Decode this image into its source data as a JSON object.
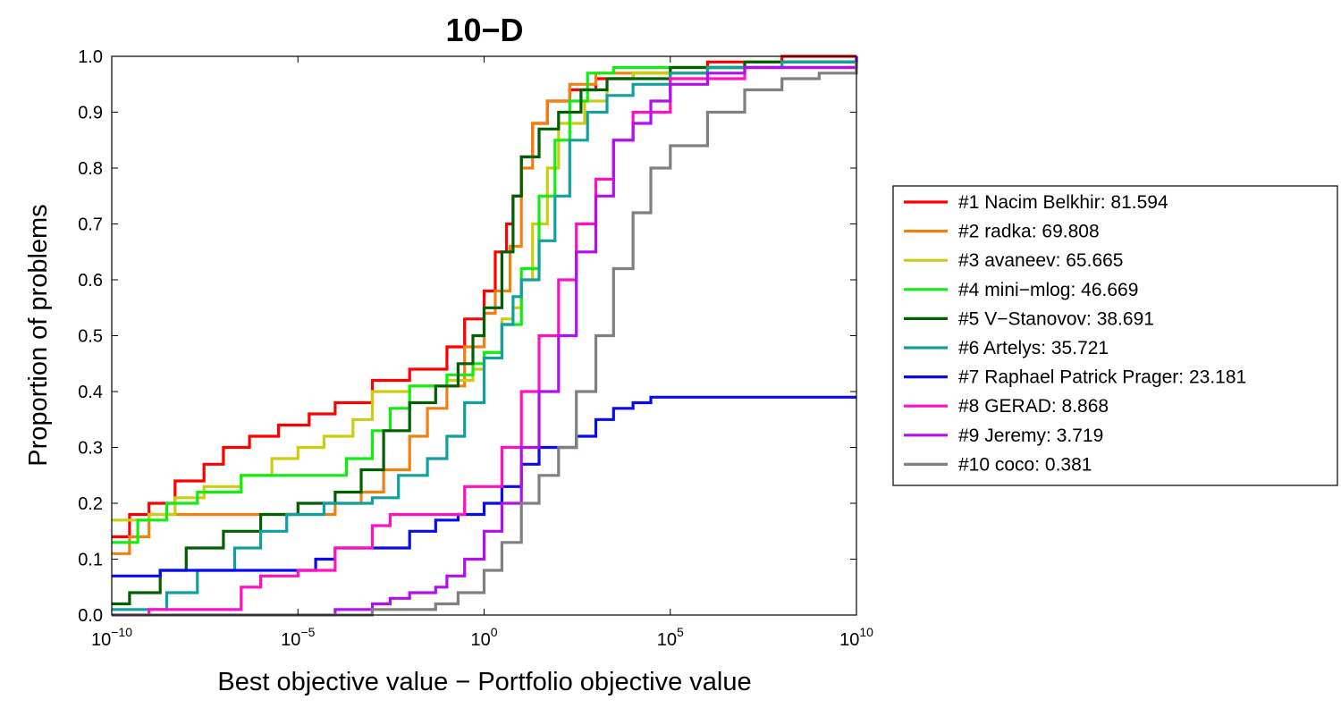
{
  "chart_data": {
    "type": "line",
    "title": "10−D",
    "xlabel": "Best objective value − Portfolio objective value",
    "ylabel": "Proportion of problems",
    "x_scale": "log",
    "xlim": [
      1e-10,
      10000000000.0
    ],
    "ylim": [
      0,
      1
    ],
    "x_ticks": [
      {
        "value": 1e-10,
        "base": "10",
        "exp": "−10"
      },
      {
        "value": 1e-05,
        "base": "10",
        "exp": "−5"
      },
      {
        "value": 1,
        "base": "10",
        "exp": "0"
      },
      {
        "value": 100000.0,
        "base": "10",
        "exp": "5"
      },
      {
        "value": 10000000000.0,
        "base": "10",
        "exp": "10"
      }
    ],
    "y_ticks": [
      "0.0",
      "0.1",
      "0.2",
      "0.3",
      "0.4",
      "0.5",
      "0.6",
      "0.7",
      "0.8",
      "0.9",
      "1.0"
    ],
    "grid": false,
    "legend_position": "right",
    "series": [
      {
        "name": "#1 Nacim Belkhir: 81.594",
        "color": "#ff0000",
        "points": [
          [
            1e-10,
            0.14
          ],
          [
            3e-10,
            0.18
          ],
          [
            1e-09,
            0.2
          ],
          [
            5e-09,
            0.24
          ],
          [
            3e-08,
            0.27
          ],
          [
            1e-07,
            0.3
          ],
          [
            5e-07,
            0.32
          ],
          [
            3e-06,
            0.34
          ],
          [
            2e-05,
            0.36
          ],
          [
            0.0001,
            0.38
          ],
          [
            0.001,
            0.42
          ],
          [
            0.01,
            0.44
          ],
          [
            0.1,
            0.48
          ],
          [
            0.3,
            0.53
          ],
          [
            1,
            0.58
          ],
          [
            2,
            0.65
          ],
          [
            4,
            0.7
          ],
          [
            6,
            0.75
          ],
          [
            10,
            0.82
          ],
          [
            20,
            0.88
          ],
          [
            50,
            0.92
          ],
          [
            200,
            0.94
          ],
          [
            1000,
            0.96
          ],
          [
            10000.0,
            0.97
          ],
          [
            1000000.0,
            0.99
          ],
          [
            100000000.0,
            1.0
          ],
          [
            10000000000.0,
            1.0
          ]
        ]
      },
      {
        "name": "#2 radka: 69.808",
        "color": "#f08010",
        "points": [
          [
            1e-10,
            0.11
          ],
          [
            3e-10,
            0.14
          ],
          [
            1e-09,
            0.18
          ],
          [
            1e-07,
            0.18
          ],
          [
            1e-05,
            0.18
          ],
          [
            0.0001,
            0.2
          ],
          [
            0.0005,
            0.22
          ],
          [
            0.002,
            0.26
          ],
          [
            0.01,
            0.32
          ],
          [
            0.03,
            0.37
          ],
          [
            0.1,
            0.41
          ],
          [
            0.3,
            0.48
          ],
          [
            1,
            0.54
          ],
          [
            2,
            0.58
          ],
          [
            5,
            0.66
          ],
          [
            10,
            0.8
          ],
          [
            20,
            0.88
          ],
          [
            50,
            0.92
          ],
          [
            200,
            0.95
          ],
          [
            1000,
            0.97
          ],
          [
            100000.0,
            0.98
          ],
          [
            10000000.0,
            0.99
          ],
          [
            10000000000.0,
            1.0
          ]
        ]
      },
      {
        "name": "#3 avaneev: 65.665",
        "color": "#cccc10",
        "points": [
          [
            1e-10,
            0.17
          ],
          [
            1e-09,
            0.18
          ],
          [
            5e-09,
            0.21
          ],
          [
            3e-08,
            0.23
          ],
          [
            3e-07,
            0.25
          ],
          [
            2e-06,
            0.28
          ],
          [
            1e-05,
            0.3
          ],
          [
            5e-05,
            0.32
          ],
          [
            0.0003,
            0.35
          ],
          [
            0.001,
            0.4
          ],
          [
            0.01,
            0.41
          ],
          [
            0.1,
            0.42
          ],
          [
            0.5,
            0.44
          ],
          [
            1,
            0.47
          ],
          [
            3,
            0.53
          ],
          [
            6,
            0.55
          ],
          [
            10,
            0.6
          ],
          [
            20,
            0.7
          ],
          [
            50,
            0.8
          ],
          [
            100,
            0.88
          ],
          [
            500,
            0.92
          ],
          [
            2000,
            0.96
          ],
          [
            10000.0,
            0.97
          ],
          [
            1000000.0,
            0.98
          ],
          [
            100000000.0,
            0.99
          ],
          [
            10000000000.0,
            1.0
          ]
        ]
      },
      {
        "name": "#4 mini−mlog: 46.669",
        "color": "#10ee10",
        "points": [
          [
            1e-10,
            0.13
          ],
          [
            5e-10,
            0.17
          ],
          [
            3e-09,
            0.2
          ],
          [
            2e-08,
            0.22
          ],
          [
            3e-07,
            0.25
          ],
          [
            5e-05,
            0.25
          ],
          [
            0.0002,
            0.28
          ],
          [
            0.001,
            0.33
          ],
          [
            0.003,
            0.37
          ],
          [
            0.01,
            0.41
          ],
          [
            0.1,
            0.43
          ],
          [
            0.5,
            0.45
          ],
          [
            1,
            0.47
          ],
          [
            3,
            0.52
          ],
          [
            10,
            0.62
          ],
          [
            30,
            0.75
          ],
          [
            80,
            0.85
          ],
          [
            200,
            0.92
          ],
          [
            600,
            0.97
          ],
          [
            3000,
            0.98
          ],
          [
            100000.0,
            0.98
          ],
          [
            10000000.0,
            0.99
          ],
          [
            10000000000.0,
            1.0
          ]
        ]
      },
      {
        "name": "#5 V−Stanovov: 38.691",
        "color": "#005f00",
        "points": [
          [
            1e-10,
            0.02
          ],
          [
            3e-10,
            0.04
          ],
          [
            2e-09,
            0.08
          ],
          [
            1e-08,
            0.12
          ],
          [
            1e-07,
            0.15
          ],
          [
            1e-06,
            0.18
          ],
          [
            1e-05,
            0.2
          ],
          [
            0.0001,
            0.22
          ],
          [
            0.0005,
            0.26
          ],
          [
            0.002,
            0.33
          ],
          [
            0.01,
            0.38
          ],
          [
            0.05,
            0.41
          ],
          [
            0.2,
            0.45
          ],
          [
            0.5,
            0.5
          ],
          [
            1,
            0.55
          ],
          [
            3,
            0.65
          ],
          [
            6,
            0.75
          ],
          [
            10,
            0.82
          ],
          [
            30,
            0.87
          ],
          [
            100,
            0.9
          ],
          [
            400,
            0.94
          ],
          [
            2000,
            0.96
          ],
          [
            100000.0,
            0.98
          ],
          [
            10000000.0,
            0.99
          ],
          [
            10000000000.0,
            1.0
          ]
        ]
      },
      {
        "name": "#6 Artelys: 35.721",
        "color": "#10a0a0",
        "points": [
          [
            1e-10,
            0.01
          ],
          [
            3e-09,
            0.04
          ],
          [
            2e-08,
            0.08
          ],
          [
            2e-07,
            0.12
          ],
          [
            1e-06,
            0.15
          ],
          [
            5e-06,
            0.18
          ],
          [
            5e-05,
            0.2
          ],
          [
            0.001,
            0.21
          ],
          [
            0.005,
            0.25
          ],
          [
            0.03,
            0.28
          ],
          [
            0.1,
            0.32
          ],
          [
            0.3,
            0.38
          ],
          [
            1,
            0.46
          ],
          [
            3,
            0.52
          ],
          [
            6,
            0.57
          ],
          [
            10,
            0.6
          ],
          [
            30,
            0.67
          ],
          [
            80,
            0.75
          ],
          [
            200,
            0.85
          ],
          [
            600,
            0.9
          ],
          [
            2000,
            0.93
          ],
          [
            10000.0,
            0.95
          ],
          [
            100000.0,
            0.97
          ],
          [
            1000000.0,
            0.98
          ],
          [
            100000000.0,
            0.99
          ],
          [
            10000000000.0,
            1.0
          ]
        ]
      },
      {
        "name": "#7 Raphael Patrick Prager: 23.181",
        "color": "#0a0aee",
        "points": [
          [
            1e-10,
            0.07
          ],
          [
            1e-09,
            0.07
          ],
          [
            2e-09,
            0.08
          ],
          [
            1e-07,
            0.08
          ],
          [
            1e-05,
            0.08
          ],
          [
            3e-05,
            0.1
          ],
          [
            0.0001,
            0.12
          ],
          [
            0.005,
            0.12
          ],
          [
            0.01,
            0.15
          ],
          [
            0.05,
            0.17
          ],
          [
            0.2,
            0.18
          ],
          [
            1,
            0.2
          ],
          [
            3,
            0.23
          ],
          [
            10,
            0.27
          ],
          [
            30,
            0.3
          ],
          [
            100,
            0.3
          ],
          [
            300,
            0.32
          ],
          [
            1000,
            0.35
          ],
          [
            3000,
            0.37
          ],
          [
            10000.0,
            0.38
          ],
          [
            30000.0,
            0.39
          ],
          [
            10000000000.0,
            0.39
          ]
        ]
      },
      {
        "name": "#8 GERAD: 8.868",
        "color": "#ff10c0",
        "points": [
          [
            1e-10,
            0.0
          ],
          [
            1e-09,
            0.01
          ],
          [
            1e-07,
            0.01
          ],
          [
            3e-07,
            0.05
          ],
          [
            1e-06,
            0.07
          ],
          [
            1e-05,
            0.08
          ],
          [
            0.0001,
            0.12
          ],
          [
            0.001,
            0.16
          ],
          [
            0.003,
            0.18
          ],
          [
            0.3,
            0.23
          ],
          [
            1,
            0.23
          ],
          [
            3,
            0.3
          ],
          [
            10,
            0.4
          ],
          [
            30,
            0.5
          ],
          [
            100,
            0.6
          ],
          [
            300,
            0.7
          ],
          [
            1000,
            0.78
          ],
          [
            3000,
            0.85
          ],
          [
            10000.0,
            0.9
          ],
          [
            100000.0,
            0.96
          ],
          [
            10000000.0,
            0.98
          ],
          [
            10000000000.0,
            0.99
          ]
        ]
      },
      {
        "name": "#9 Jeremy: 3.719",
        "color": "#b010ee",
        "points": [
          [
            1e-10,
            0.0
          ],
          [
            1e-05,
            0.0
          ],
          [
            0.0001,
            0.01
          ],
          [
            0.001,
            0.02
          ],
          [
            0.003,
            0.03
          ],
          [
            0.01,
            0.04
          ],
          [
            0.05,
            0.05
          ],
          [
            0.1,
            0.07
          ],
          [
            0.3,
            0.1
          ],
          [
            1,
            0.15
          ],
          [
            3,
            0.2
          ],
          [
            10,
            0.3
          ],
          [
            30,
            0.4
          ],
          [
            100,
            0.5
          ],
          [
            300,
            0.65
          ],
          [
            1000,
            0.75
          ],
          [
            3000,
            0.85
          ],
          [
            10000.0,
            0.88
          ],
          [
            30000.0,
            0.92
          ],
          [
            100000.0,
            0.95
          ],
          [
            1000000.0,
            0.97
          ],
          [
            10000000.0,
            0.98
          ],
          [
            10000000000.0,
            1.0
          ]
        ]
      },
      {
        "name": "#10 coco: 0.381",
        "color": "#808080",
        "points": [
          [
            1e-10,
            0.0
          ],
          [
            0.0003,
            0.0
          ],
          [
            0.001,
            0.01
          ],
          [
            0.01,
            0.01
          ],
          [
            0.05,
            0.02
          ],
          [
            0.2,
            0.04
          ],
          [
            1,
            0.08
          ],
          [
            3,
            0.13
          ],
          [
            10,
            0.2
          ],
          [
            30,
            0.25
          ],
          [
            100,
            0.3
          ],
          [
            300,
            0.4
          ],
          [
            1000,
            0.5
          ],
          [
            3000,
            0.62
          ],
          [
            10000.0,
            0.72
          ],
          [
            30000.0,
            0.8
          ],
          [
            100000.0,
            0.84
          ],
          [
            1000000.0,
            0.9
          ],
          [
            10000000.0,
            0.94
          ],
          [
            100000000.0,
            0.96
          ],
          [
            1000000000.0,
            0.97
          ],
          [
            10000000000.0,
            0.99
          ]
        ]
      }
    ]
  }
}
